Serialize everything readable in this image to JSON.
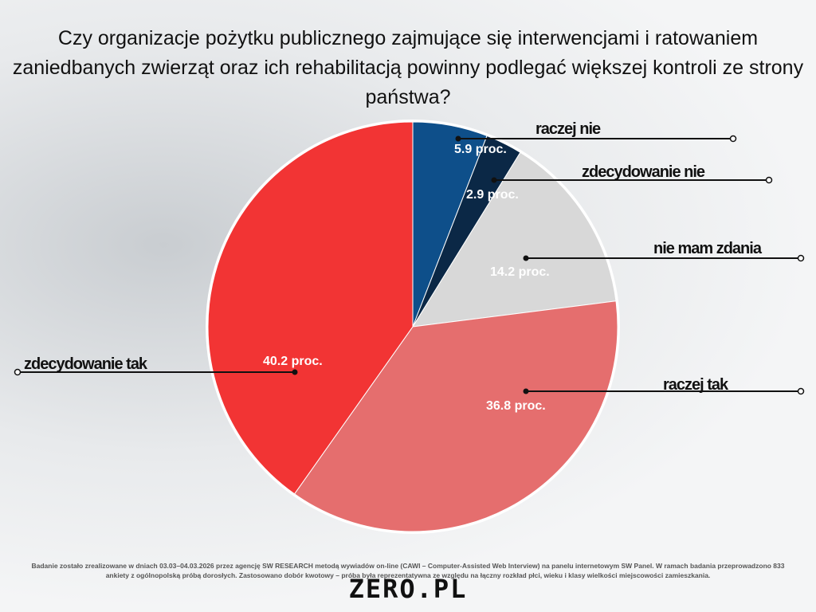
{
  "chart_data": {
    "type": "pie",
    "title": "Czy organizacje pożytku publicznego zajmujące się interwencjami i ratowaniem zaniedbanych zwierząt oraz ich rehabilitacją powinny podlegać większej kontroli ze strony państwa?",
    "slices": [
      {
        "label": "raczej nie",
        "value": 5.9,
        "value_label": "5.9 proc.",
        "color": "#0e4f8a"
      },
      {
        "label": "zdecydowanie nie",
        "value": 2.9,
        "value_label": "2.9 proc.",
        "color": "#0b2846"
      },
      {
        "label": "nie mam zdania",
        "value": 14.2,
        "value_label": "14.2 proc.",
        "color": "#d8d8d8"
      },
      {
        "label": "raczej tak",
        "value": 36.8,
        "value_label": "36.8 proc.",
        "color": "#e56e6e"
      },
      {
        "label": "zdecydowanie tak",
        "value": 40.2,
        "value_label": "40.2 proc.",
        "color": "#f23434"
      }
    ]
  },
  "footer": "Badanie zostało zrealizowane w dniach 03.03–04.03.2026 przez agencję SW RESEARCH metodą wywiadów on-line (CAWI – Computer-Assisted Web Interview) na panelu internetowym SW Panel. W ramach badania przeprowadzono 833 ankiety z ogólnopolską próbą dorosłych. Zastosowano dobór kwotowy – próba była reprezentatywna ze względu na łączny rozkład płci, wieku i klasy wielkości miejscowości zamieszkania.",
  "logo": "ZERO.PL"
}
